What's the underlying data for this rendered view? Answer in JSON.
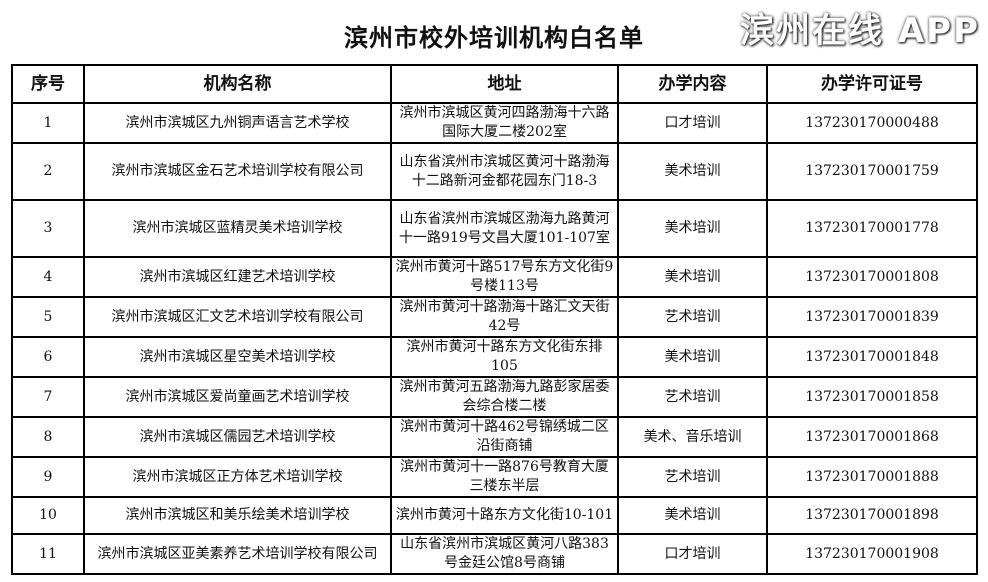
{
  "title": "滨州市校外培训机构白名单",
  "headers": [
    "序号",
    "机构名称",
    "地址",
    "办学内容",
    "办学许可证号"
  ],
  "rows": [
    [
      "1",
      "滨州市滨城区九州铜声语言艺术学校",
      "滨州市滨城区黄河四路渤海十六路国际大厦二楼202室",
      "口才培训",
      "137230170000488"
    ],
    [
      "2",
      "滨州市滨城区金石艺术培训学校有限公司",
      "山东省滨州市滨城区黄河十路渤海十二路新河金都花园东门18-3",
      "美术培训",
      "137230170001759"
    ],
    [
      "3",
      "滨州市滨城区蓝精灵美术培训学校",
      "山东省滨州市滨城区渤海九路黄河十一路919号文昌大厦101-107室",
      "美术培训",
      "137230170001778"
    ],
    [
      "4",
      "滨州市滨城区红建艺术培训学校",
      "滨州市黄河十路517号东方文化街9号楼113号",
      "美术培训",
      "137230170001808"
    ],
    [
      "5",
      "滨州市滨城区汇文艺术培训学校有限公司",
      "滨州市黄河十路渤海十路汇文天街42号",
      "艺术培训",
      "137230170001839"
    ],
    [
      "6",
      "滨州市滨城区星空美术培训学校",
      "滨州市黄河十路东方文化街东排105",
      "美术培训",
      "137230170001848"
    ],
    [
      "7",
      "滨州市滨城区爱尚童画艺术培训学校",
      "滨州市黄河五路渤海九路彭家居委会综合楼二楼",
      "艺术培训",
      "137230170001858"
    ],
    [
      "8",
      "滨州市滨城区儒园艺术培训学校",
      "滨州市黄河十路462号锦绣城二区沿街商铺",
      "美术、音乐培训",
      "137230170001868"
    ],
    [
      "9",
      "滨州市滨城区正方体艺术培训学校",
      "滨州市黄河十一路876号教育大厦三楼东半层",
      "艺术培训",
      "137230170001888"
    ],
    [
      "10",
      "滨州市滨城区和美乐绘美术培训学校",
      "滨州市黄河十路东方文化街10-101",
      "美术培训",
      "137230170001898"
    ],
    [
      "11",
      "滨州市滨城区亚美素养艺术培训学校有限公司",
      "山东省滨州市滨城区黄河八路383号金廷公馆8号商铺",
      "口才培训",
      "137230170001908"
    ]
  ],
  "watermark": "滨州在线 APP"
}
